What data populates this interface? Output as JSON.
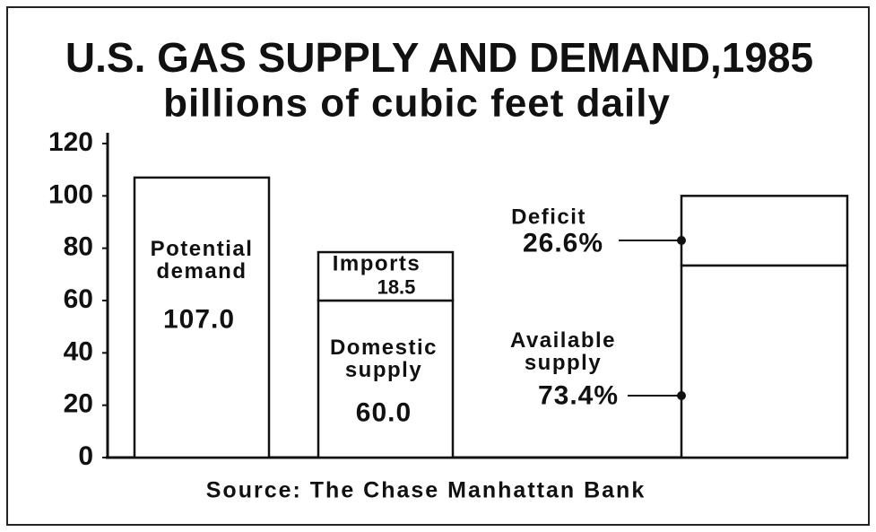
{
  "chart_data": {
    "type": "stacked_bar",
    "title": "U.S. GAS SUPPLY AND DEMAND,1985",
    "subtitle": "billions of cubic feet daily",
    "source": "Source: The Chase Manhattan Bank",
    "ylim": [
      0,
      120
    ],
    "yticks": [
      0,
      20,
      40,
      60,
      80,
      100,
      120
    ],
    "bars": [
      {
        "segments": [
          {
            "name": "Potential demand",
            "value": 107.0,
            "value_label": "107.0"
          }
        ]
      },
      {
        "segments": [
          {
            "name": "Domestic supply",
            "value": 60.0,
            "value_label": "60.0"
          },
          {
            "name": "Imports",
            "value": 18.5
          }
        ]
      },
      {
        "segments": [
          {
            "name": "Available supply",
            "value": 73.4,
            "value_label": "73.4%"
          },
          {
            "name": "Deficit",
            "value": 26.6,
            "value_label": "26.6%"
          }
        ]
      }
    ]
  }
}
